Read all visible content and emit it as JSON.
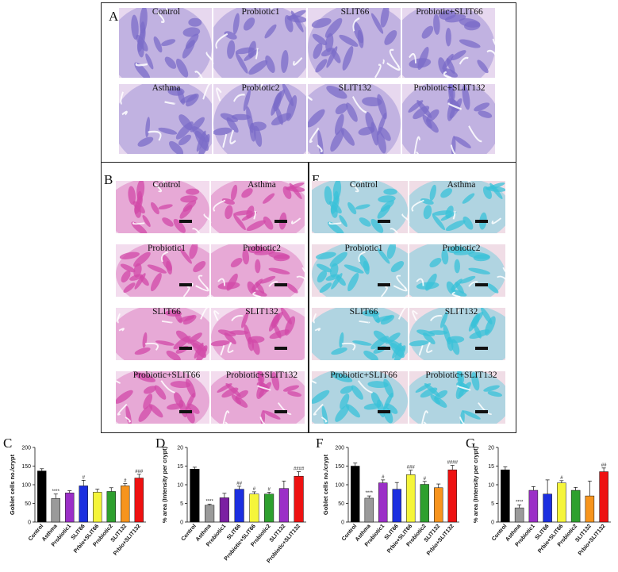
{
  "panel_letters": {
    "A": "A",
    "B": "B",
    "E": "E",
    "C": "C",
    "D": "D",
    "F": "F",
    "G": "G"
  },
  "panelA": [
    "Control",
    "Probiotic1",
    "SLIT66",
    "Probiotic+SLIT66",
    "Asthma",
    "Probiotic2",
    "SLIT132",
    "Probiotic+SLIT132"
  ],
  "panelB": [
    "Control",
    "Asthma",
    "Probiotic1",
    "Probiotic2",
    "SLIT66",
    "SLIT132",
    "Probiotic+SLIT66",
    "Probiotic+SLIT132"
  ],
  "panelE": [
    "Control",
    "Asthma",
    "Probiotic1",
    "Probiotic2",
    "SLIT66",
    "SLIT132",
    "Probiotic+SLIT66",
    "Probiotic+SLIT132"
  ],
  "stain_colors": {
    "A_tissue": "#7b6cc8",
    "A_bg": "#e7d8ef",
    "B_tissue": "#d24aa8",
    "B_bg": "#f3dcee",
    "E_tissue": "#39c2d8",
    "E_bg": "#f0dde6"
  },
  "chart_data": [
    {
      "id": "C",
      "type": "bar",
      "ylabel": "Goblet cells no./crypt",
      "ylim": [
        0,
        200
      ],
      "yticks": [
        0,
        50,
        100,
        150,
        200
      ],
      "categories": [
        "Control",
        "Asthma",
        "Probiotic1",
        "SLIT66",
        "Prbio+SLIT66",
        "Probiotic2",
        "SLIT132",
        "Prbio+SLIT132"
      ],
      "values": [
        137,
        63,
        78,
        97,
        80,
        82,
        97,
        118
      ],
      "errors": [
        6,
        12,
        6,
        15,
        8,
        10,
        6,
        10
      ],
      "colors": [
        "#000000",
        "#9a9a9a",
        "#9b2fc7",
        "#1c2fe0",
        "#f5f53a",
        "#2ea02e",
        "#f7941d",
        "#ee1111"
      ],
      "annotations": [
        "",
        "****",
        "",
        "#",
        "",
        "",
        "#",
        "###"
      ]
    },
    {
      "id": "D",
      "type": "bar",
      "ylabel": "% area (Intensity per crypt)",
      "ylim": [
        0,
        20
      ],
      "yticks": [
        0,
        5,
        10,
        15,
        20
      ],
      "categories": [
        "Control",
        "Asthma",
        "Probiotic1",
        "SLIT66",
        "Probiotic+SLIT66",
        "Probiotic2",
        "SLIT132",
        "Probiotic+SLIT132"
      ],
      "values": [
        14.2,
        4.5,
        6.5,
        8.8,
        7.5,
        7.5,
        9.0,
        12.3
      ],
      "errors": [
        0.5,
        0.3,
        1.2,
        0.8,
        0.6,
        0.5,
        2.0,
        1.2
      ],
      "colors": [
        "#000000",
        "#9a9a9a",
        "#7b1fa2",
        "#1c2fe0",
        "#f5f53a",
        "#2ea02e",
        "#9b2fc7",
        "#ee1111"
      ],
      "annotations": [
        "",
        "****",
        "",
        "##",
        "#",
        "#",
        "",
        "####"
      ]
    },
    {
      "id": "F",
      "type": "bar",
      "ylabel": "Goblet cells no./crypt",
      "ylim": [
        0,
        200
      ],
      "yticks": [
        0,
        50,
        100,
        150,
        200
      ],
      "categories": [
        "Control",
        "Asthma",
        "Probiotic1",
        "SLIT66",
        "Prbio+SLIT66",
        "Probiotic2",
        "SLIT132",
        "Prbio+SLIT132"
      ],
      "values": [
        150,
        64,
        105,
        88,
        127,
        101,
        92,
        140
      ],
      "errors": [
        8,
        6,
        8,
        18,
        12,
        8,
        10,
        12
      ],
      "colors": [
        "#000000",
        "#9a9a9a",
        "#9b2fc7",
        "#1c2fe0",
        "#f5f53a",
        "#2ea02e",
        "#f7941d",
        "#ee1111"
      ],
      "annotations": [
        "",
        "****",
        "#",
        "",
        "###",
        "#",
        "",
        "####"
      ]
    },
    {
      "id": "G",
      "type": "bar",
      "ylabel": "% area (Intensity per crypt)",
      "ylim": [
        0,
        20
      ],
      "yticks": [
        0,
        5,
        10,
        15,
        20
      ],
      "categories": [
        "Control",
        "Asthma",
        "Probiotic1",
        "SLIT66",
        "Prbio+SLIT66",
        "Probiotic2",
        "SLIT132",
        "Prbio+SLIT132"
      ],
      "values": [
        14.0,
        3.8,
        8.5,
        7.5,
        10.5,
        8.5,
        7.0,
        13.5
      ],
      "errors": [
        0.8,
        0.8,
        1.0,
        3.8,
        0.6,
        0.8,
        4.0,
        1.0
      ],
      "colors": [
        "#000000",
        "#9a9a9a",
        "#9b2fc7",
        "#1c2fe0",
        "#f5f53a",
        "#2ea02e",
        "#f7941d",
        "#ee1111"
      ],
      "annotations": [
        "",
        "****",
        "",
        "",
        "#",
        "",
        "",
        "##"
      ]
    }
  ]
}
